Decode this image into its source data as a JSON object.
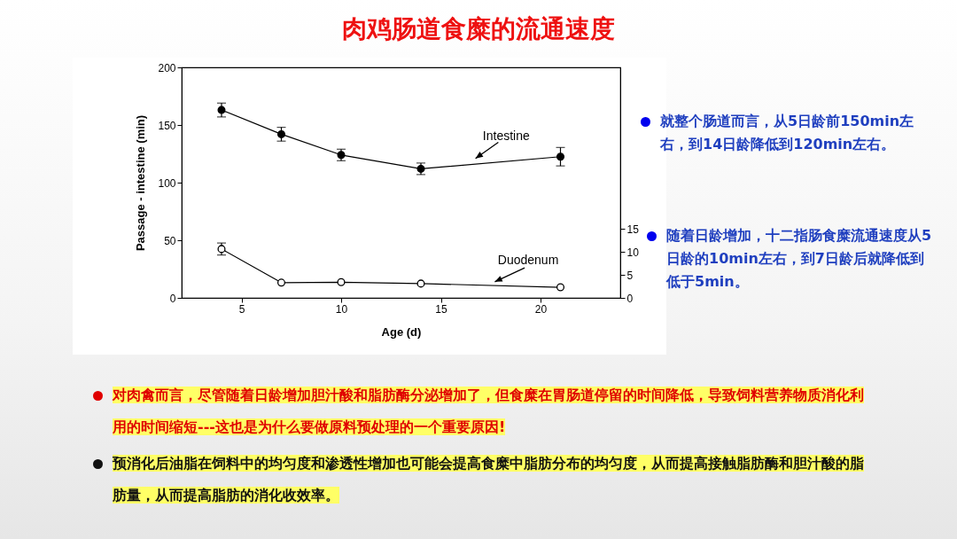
{
  "chart_data": {
    "type": "line",
    "title": "肉鸡肠道食糜的流通速度",
    "xlabel": "Age (d)",
    "ylabel": "Passage - intestine (min)",
    "x": [
      4,
      7,
      10,
      14,
      21
    ],
    "series": [
      {
        "name": "Intestine",
        "color": "#000000",
        "values": [
          163,
          142,
          124,
          112,
          122.5
        ],
        "errors": [
          6,
          6,
          5,
          5,
          8
        ]
      },
      {
        "name": "Duodenum",
        "color": "#000000",
        "axis": "y2",
        "values": [
          10.6,
          3.3,
          3.4,
          3.1,
          2.3
        ],
        "errors": [
          1.3,
          null,
          null,
          null,
          null
        ]
      }
    ],
    "xlim": [
      2,
      24
    ],
    "xticks": [
      5,
      10,
      15,
      20
    ],
    "ylim": [
      0,
      200
    ],
    "yticks": [
      0,
      50,
      100,
      150,
      200
    ],
    "y2lim": [
      0,
      50
    ],
    "y2ticks": [
      0,
      5,
      10,
      15
    ],
    "grid": false,
    "legend": false,
    "marker": "circle",
    "line_style": "solid",
    "annotations": [
      "就整个肠道而言，从5日龄前150min左右，到14日龄降低到120min左右。",
      "随着日龄增加，十二指肠食糜流通速度从5日龄的10min左右，到7日龄后就降低到低于5min。",
      "对肉禽而言，尽管随着日龄增加胆汁酸和脂肪酶分泌增加了，但食糜在胃肠道停留的时间降低，导致饲料营养物质消化利用的时间缩短---这也是为什么要做原料预处理的一个重要原因!",
      "预消化后油脂在饲料中的均匀度和渗透性增加也可能会提高食糜中脂肪分布的均匀度，从而提高接触脂肪酶和胆汁酸的脂肪量，从而提高脂肪的消化收效率。"
    ]
  }
}
